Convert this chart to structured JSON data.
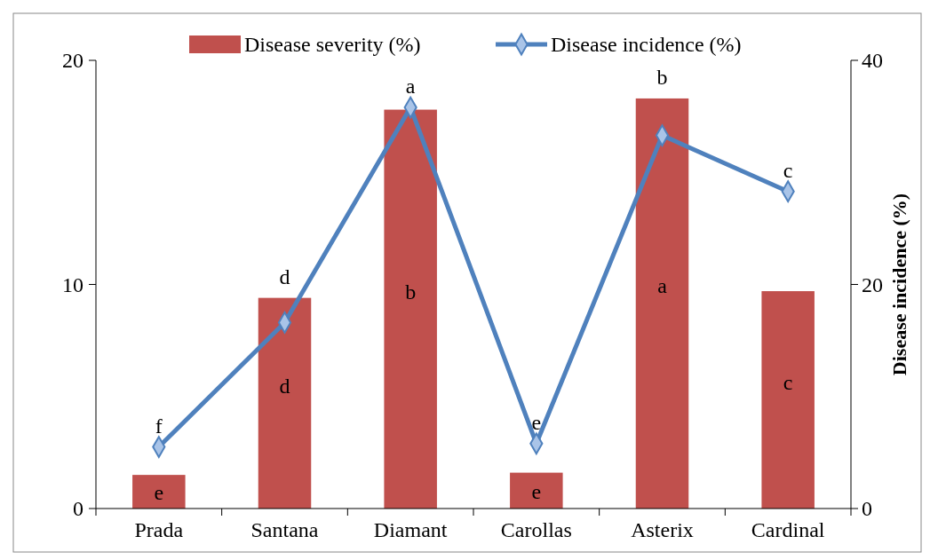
{
  "chart_data": {
    "type": "bar",
    "categories": [
      "Prada",
      "Santana",
      "Diamant",
      "Carollas",
      "Asterix",
      "Cardinal"
    ],
    "series": [
      {
        "name": "Disease severity (%)",
        "color": "#c0504d",
        "values": [
          1.5,
          9.4,
          17.8,
          1.6,
          18.3,
          9.7
        ]
      },
      {
        "name": "Disease incidence (%)",
        "type": "line",
        "axis": "y2",
        "color": "#4f81bd",
        "marker": "diamond",
        "values": [
          5.5,
          16.6,
          35.8,
          5.8,
          33.3,
          28.3
        ]
      }
    ],
    "ylim": [
      0,
      20
    ],
    "yticks": [
      0,
      10,
      20
    ],
    "y2lim": [
      0,
      40
    ],
    "y2ticks": [
      0,
      20,
      40
    ],
    "y2label": "Disease incidence (%)",
    "legend": "top",
    "grid": false,
    "annotations": [
      "f",
      "d",
      "a",
      "e",
      "b",
      "c",
      "e",
      "d",
      "b",
      "e",
      "a",
      "c"
    ]
  }
}
